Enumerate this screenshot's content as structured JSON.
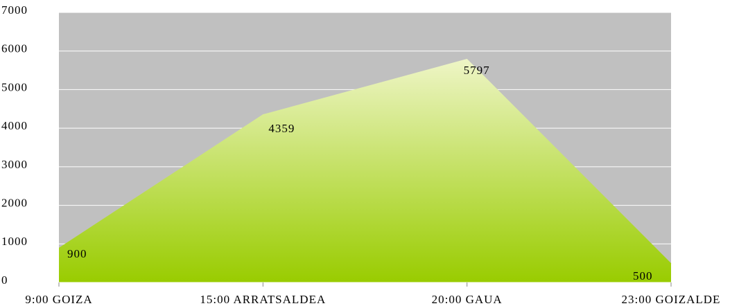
{
  "chart_data": {
    "type": "area",
    "categories": [
      "9:00 GOIZA",
      "15:00 ARRATSALDEA",
      "20:00 GAUA",
      "23:00 GOIZALDE"
    ],
    "values": [
      900,
      4359,
      5797,
      500
    ],
    "color": "#99cc00",
    "background": "#c0c0c0",
    "ylim": [
      0,
      7000
    ],
    "yticks": [
      0,
      1000,
      2000,
      3000,
      4000,
      5000,
      6000,
      7000
    ],
    "grid": true
  }
}
